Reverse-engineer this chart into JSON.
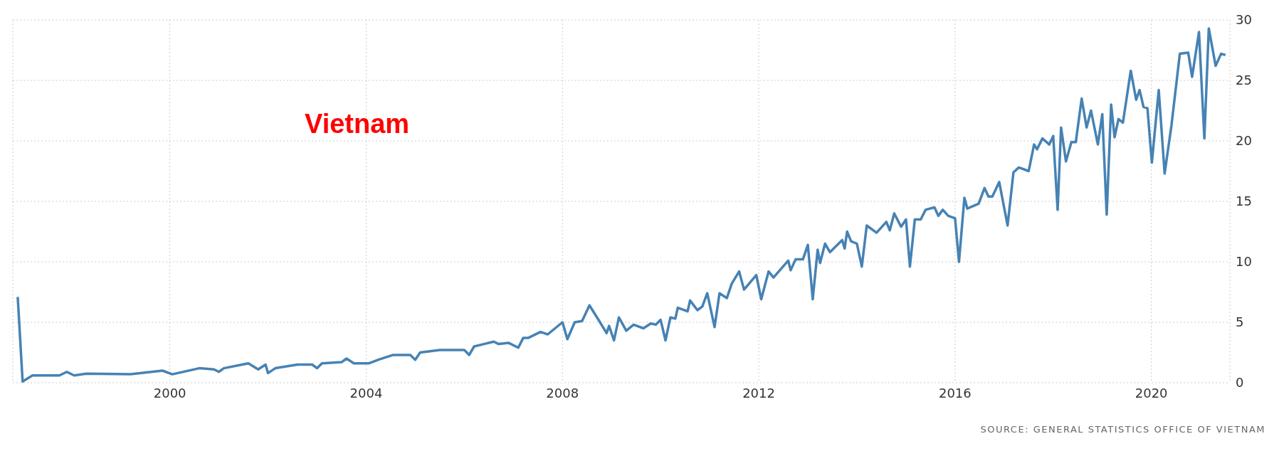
{
  "chart_data": {
    "type": "line",
    "title": "Vietnam",
    "annotations": [
      "SOURCE: GENERAL STATISTICS OFFICE OF VIETNAM"
    ],
    "xlim": [
      1996.8,
      2021.6
    ],
    "xticks": [
      2000,
      2004,
      2008,
      2012,
      2016,
      2020
    ],
    "ylim": [
      0,
      30
    ],
    "yticks": [
      0,
      5,
      10,
      15,
      20,
      25,
      30
    ],
    "grid": true,
    "legend": false,
    "marker": "none",
    "line_style": "solid",
    "series": [
      {
        "color": "#4682b4",
        "x": [
          1996.9,
          1997.0,
          1997.2,
          1997.75,
          1997.9,
          1998.05,
          1998.3,
          1999.2,
          1999.85,
          2000.05,
          2000.6,
          2000.9,
          2001.0,
          2001.1,
          2001.6,
          2001.8,
          2001.95,
          2002.0,
          2002.15,
          2002.6,
          2002.9,
          2003.0,
          2003.1,
          2003.5,
          2003.6,
          2003.75,
          2004.05,
          2004.25,
          2004.55,
          2004.9,
          2005.0,
          2005.1,
          2005.5,
          2006.0,
          2006.1,
          2006.2,
          2006.4,
          2006.6,
          2006.7,
          2006.9,
          2007.1,
          2007.2,
          2007.3,
          2007.55,
          2007.7,
          2008.0,
          2008.1,
          2008.25,
          2008.4,
          2008.55,
          2008.75,
          2008.9,
          2008.95,
          2009.05,
          2009.15,
          2009.3,
          2009.45,
          2009.65,
          2009.8,
          2009.9,
          2010.0,
          2010.1,
          2010.2,
          2010.3,
          2010.35,
          2010.55,
          2010.6,
          2010.75,
          2010.85,
          2010.95,
          2011.1,
          2011.2,
          2011.35,
          2011.45,
          2011.6,
          2011.7,
          2011.95,
          2012.05,
          2012.2,
          2012.3,
          2012.6,
          2012.65,
          2012.75,
          2012.9,
          2013.0,
          2013.1,
          2013.2,
          2013.25,
          2013.35,
          2013.45,
          2013.7,
          2013.75,
          2013.8,
          2013.88,
          2014.0,
          2014.1,
          2014.2,
          2014.4,
          2014.6,
          2014.67,
          2014.76,
          2014.9,
          2015.0,
          2015.08,
          2015.18,
          2015.3,
          2015.4,
          2015.58,
          2015.66,
          2015.75,
          2015.86,
          2016.0,
          2016.08,
          2016.19,
          2016.25,
          2016.48,
          2016.6,
          2016.68,
          2016.76,
          2016.9,
          2017.07,
          2017.19,
          2017.3,
          2017.5,
          2017.61,
          2017.67,
          2017.78,
          2017.92,
          2018.0,
          2018.09,
          2018.16,
          2018.26,
          2018.37,
          2018.46,
          2018.58,
          2018.68,
          2018.77,
          2018.91,
          2019.0,
          2019.09,
          2019.18,
          2019.25,
          2019.33,
          2019.42,
          2019.58,
          2019.69,
          2019.76,
          2019.84,
          2019.92,
          2020.01,
          2020.15,
          2020.27,
          2020.41,
          2020.58,
          2020.75,
          2020.83,
          2020.97,
          2021.08,
          2021.17,
          2021.31,
          2021.42,
          2021.51
        ],
        "values": [
          7.1,
          0.1,
          0.6,
          0.6,
          0.9,
          0.6,
          0.75,
          0.7,
          1.0,
          0.7,
          1.2,
          1.1,
          0.9,
          1.2,
          1.6,
          1.1,
          1.5,
          0.8,
          1.2,
          1.5,
          1.5,
          1.2,
          1.6,
          1.7,
          2.0,
          1.6,
          1.6,
          1.9,
          2.3,
          2.3,
          1.9,
          2.5,
          2.7,
          2.7,
          2.3,
          3.0,
          3.2,
          3.4,
          3.2,
          3.3,
          2.9,
          3.7,
          3.7,
          4.2,
          4.0,
          5.0,
          3.6,
          5.0,
          5.1,
          6.4,
          5.1,
          4.1,
          4.7,
          3.5,
          5.4,
          4.3,
          4.8,
          4.5,
          4.9,
          4.8,
          5.2,
          3.5,
          5.4,
          5.3,
          6.2,
          5.9,
          6.8,
          6.0,
          6.3,
          7.4,
          4.6,
          7.4,
          7.0,
          8.2,
          9.2,
          7.7,
          8.9,
          6.9,
          9.2,
          8.7,
          10.1,
          9.3,
          10.2,
          10.2,
          11.4,
          6.9,
          11.0,
          9.9,
          11.5,
          10.8,
          11.8,
          11.1,
          12.5,
          11.7,
          11.5,
          9.6,
          13.0,
          12.4,
          13.3,
          12.6,
          14.0,
          12.9,
          13.5,
          9.6,
          13.5,
          13.5,
          14.3,
          14.5,
          13.8,
          14.3,
          13.8,
          13.6,
          10.0,
          15.3,
          14.4,
          14.8,
          16.1,
          15.4,
          15.4,
          16.6,
          13.0,
          17.4,
          17.8,
          17.5,
          19.7,
          19.3,
          20.2,
          19.7,
          20.4,
          14.3,
          21.1,
          18.3,
          19.9,
          19.9,
          23.5,
          21.1,
          22.5,
          19.7,
          22.2,
          13.9,
          23.0,
          20.3,
          21.8,
          21.5,
          25.8,
          23.4,
          24.2,
          22.8,
          22.7,
          18.2,
          24.2,
          17.3,
          21.3,
          27.2,
          27.3,
          25.3,
          29.0,
          20.2,
          29.3,
          26.2,
          27.2,
          27.1
        ]
      }
    ]
  }
}
